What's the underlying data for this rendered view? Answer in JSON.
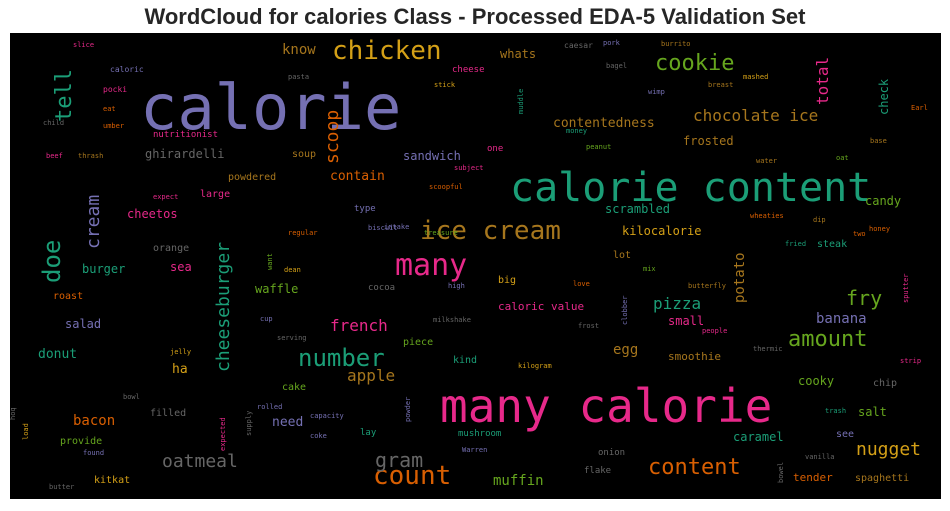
{
  "title": "WordCloud for calories Class - Processed EDA-5 Validation Set",
  "chart_data": {
    "type": "wordcloud",
    "background": "#000000",
    "words": [
      {
        "text": "calorie",
        "size": 62,
        "color": "#7570b3"
      },
      {
        "text": "many calorie",
        "size": 46,
        "color": "#e7298a"
      },
      {
        "text": "calorie content",
        "size": 40,
        "color": "#1b9e77"
      },
      {
        "text": "chicken",
        "size": 26,
        "color": "#d4a017"
      },
      {
        "text": "cookie",
        "size": 22,
        "color": "#66a61e"
      },
      {
        "text": "many",
        "size": 30,
        "color": "#e7298a"
      },
      {
        "text": "ice cream",
        "size": 26,
        "color": "#a6761d"
      },
      {
        "text": "count",
        "size": 26,
        "color": "#d95f02"
      },
      {
        "text": "number",
        "size": 24,
        "color": "#1b9e77"
      },
      {
        "text": "content",
        "size": 22,
        "color": "#d95f02"
      },
      {
        "text": "amount",
        "size": 22,
        "color": "#66a61e"
      },
      {
        "text": "doe",
        "size": 24,
        "color": "#1b9e77",
        "rotate": true
      },
      {
        "text": "tell",
        "size": 22,
        "color": "#1b9e77",
        "rotate": true
      },
      {
        "text": "scoop",
        "size": 18,
        "color": "#d95f02",
        "rotate": true
      },
      {
        "text": "cheeseburger",
        "size": 18,
        "color": "#1b9e77",
        "rotate": true
      },
      {
        "text": "chocolate ice",
        "size": 16,
        "color": "#a6761d"
      },
      {
        "text": "total",
        "size": 16,
        "color": "#e7298a",
        "rotate": true
      },
      {
        "text": "fry",
        "size": 20,
        "color": "#66a61e"
      },
      {
        "text": "gram",
        "size": 20,
        "color": "#666666"
      },
      {
        "text": "oatmeal",
        "size": 18,
        "color": "#666666"
      },
      {
        "text": "nugget",
        "size": 18,
        "color": "#d4a017"
      },
      {
        "text": "cream",
        "size": 18,
        "color": "#7570b3",
        "rotate": true
      },
      {
        "text": "french",
        "size": 16,
        "color": "#e7298a"
      },
      {
        "text": "apple",
        "size": 16,
        "color": "#a6761d"
      },
      {
        "text": "pizza",
        "size": 16,
        "color": "#1b9e77"
      },
      {
        "text": "banana",
        "size": 14,
        "color": "#7570b3"
      },
      {
        "text": "potato",
        "size": 14,
        "color": "#a6761d",
        "rotate": true
      },
      {
        "text": "muffin",
        "size": 14,
        "color": "#66a61e"
      },
      {
        "text": "bacon",
        "size": 14,
        "color": "#d95f02"
      },
      {
        "text": "know",
        "size": 14,
        "color": "#a6761d"
      },
      {
        "text": "whats",
        "size": 12,
        "color": "#a6761d"
      },
      {
        "text": "contentedness",
        "size": 13,
        "color": "#a6761d"
      },
      {
        "text": "frosted",
        "size": 12,
        "color": "#a6761d"
      },
      {
        "text": "check",
        "size": 12,
        "color": "#1b9e77",
        "rotate": true
      },
      {
        "text": "ghirardelli",
        "size": 12,
        "color": "#666666"
      },
      {
        "text": "sandwich",
        "size": 12,
        "color": "#7570b3"
      },
      {
        "text": "contain",
        "size": 13,
        "color": "#d95f02"
      },
      {
        "text": "scrambled",
        "size": 12,
        "color": "#1b9e77"
      },
      {
        "text": "candy",
        "size": 12,
        "color": "#66a61e"
      },
      {
        "text": "kilocalorie",
        "size": 12,
        "color": "#d4a017"
      },
      {
        "text": "cheetos",
        "size": 12,
        "color": "#e7298a"
      },
      {
        "text": "burger",
        "size": 12,
        "color": "#1b9e77"
      },
      {
        "text": "sea",
        "size": 12,
        "color": "#e7298a"
      },
      {
        "text": "waffle",
        "size": 12,
        "color": "#66a61e"
      },
      {
        "text": "salad",
        "size": 12,
        "color": "#7570b3"
      },
      {
        "text": "donut",
        "size": 13,
        "color": "#1b9e77"
      },
      {
        "text": "ha",
        "size": 13,
        "color": "#d4a017"
      },
      {
        "text": "egg",
        "size": 14,
        "color": "#a6761d"
      },
      {
        "text": "smoothie",
        "size": 11,
        "color": "#a6761d"
      },
      {
        "text": "small",
        "size": 12,
        "color": "#e7298a"
      },
      {
        "text": "caloric value",
        "size": 11,
        "color": "#e7298a"
      },
      {
        "text": "cooky",
        "size": 12,
        "color": "#66a61e"
      },
      {
        "text": "salt",
        "size": 12,
        "color": "#66a61e"
      },
      {
        "text": "caramel",
        "size": 12,
        "color": "#1b9e77"
      },
      {
        "text": "need",
        "size": 13,
        "color": "#7570b3"
      },
      {
        "text": "tender",
        "size": 11,
        "color": "#d95f02"
      },
      {
        "text": "spaghetti",
        "size": 10,
        "color": "#a6761d"
      },
      {
        "text": "kitkat",
        "size": 10,
        "color": "#d4a017"
      },
      {
        "text": "provide",
        "size": 10,
        "color": "#66a61e"
      },
      {
        "text": "filled",
        "size": 10,
        "color": "#666666"
      },
      {
        "text": "powdered",
        "size": 10,
        "color": "#a6761d"
      },
      {
        "text": "large",
        "size": 10,
        "color": "#e7298a"
      },
      {
        "text": "soup",
        "size": 10,
        "color": "#a6761d"
      },
      {
        "text": "roast",
        "size": 10,
        "color": "#d95f02"
      },
      {
        "text": "orange",
        "size": 10,
        "color": "#666666"
      },
      {
        "text": "cocoa",
        "size": 9,
        "color": "#666666"
      },
      {
        "text": "big",
        "size": 10,
        "color": "#d4a017"
      },
      {
        "text": "lot",
        "size": 10,
        "color": "#a6761d"
      },
      {
        "text": "steak",
        "size": 10,
        "color": "#1b9e77"
      },
      {
        "text": "kind",
        "size": 10,
        "color": "#1b9e77"
      },
      {
        "text": "piece",
        "size": 10,
        "color": "#66a61e"
      },
      {
        "text": "cake",
        "size": 10,
        "color": "#66a61e"
      },
      {
        "text": "chip",
        "size": 10,
        "color": "#666666"
      },
      {
        "text": "see",
        "size": 10,
        "color": "#7570b3"
      },
      {
        "text": "mushroom",
        "size": 9,
        "color": "#1b9e77"
      },
      {
        "text": "onion",
        "size": 9,
        "color": "#666666"
      },
      {
        "text": "flake",
        "size": 9,
        "color": "#666666"
      },
      {
        "text": "lay",
        "size": 9,
        "color": "#1b9e77"
      },
      {
        "text": "nutritionist",
        "size": 9,
        "color": "#e7298a"
      },
      {
        "text": "type",
        "size": 9,
        "color": "#7570b3"
      },
      {
        "text": "one",
        "size": 9,
        "color": "#e7298a"
      },
      {
        "text": "caloric",
        "size": 8,
        "color": "#7570b3"
      },
      {
        "text": "slice",
        "size": 7,
        "color": "#e7298a"
      },
      {
        "text": "pocki",
        "size": 8,
        "color": "#e7298a"
      },
      {
        "text": "eat",
        "size": 7,
        "color": "#d95f02"
      },
      {
        "text": "child",
        "size": 7,
        "color": "#666666"
      },
      {
        "text": "umber",
        "size": 7,
        "color": "#d95f02"
      },
      {
        "text": "beef",
        "size": 7,
        "color": "#e7298a"
      },
      {
        "text": "thrash",
        "size": 7,
        "color": "#a6761d"
      },
      {
        "text": "caesar",
        "size": 8,
        "color": "#666666"
      },
      {
        "text": "pork",
        "size": 7,
        "color": "#7570b3"
      },
      {
        "text": "burrito",
        "size": 7,
        "color": "#a6761d"
      },
      {
        "text": "bagel",
        "size": 7,
        "color": "#666666"
      },
      {
        "text": "mashed",
        "size": 7,
        "color": "#d4a017"
      },
      {
        "text": "breast",
        "size": 7,
        "color": "#a6761d"
      },
      {
        "text": "wimp",
        "size": 7,
        "color": "#7570b3"
      },
      {
        "text": "Earl",
        "size": 7,
        "color": "#d95f02"
      },
      {
        "text": "base",
        "size": 7,
        "color": "#a6761d"
      },
      {
        "text": "money",
        "size": 7,
        "color": "#1b9e77"
      },
      {
        "text": "peanut",
        "size": 7,
        "color": "#66a61e"
      },
      {
        "text": "water",
        "size": 7,
        "color": "#a6761d"
      },
      {
        "text": "oat",
        "size": 7,
        "color": "#66a61e"
      },
      {
        "text": "pasta",
        "size": 7,
        "color": "#666666"
      },
      {
        "text": "cheese",
        "size": 9,
        "color": "#e7298a"
      },
      {
        "text": "stick",
        "size": 7,
        "color": "#d4a017"
      },
      {
        "text": "muddle",
        "size": 7,
        "color": "#1b9e77",
        "rotate": true
      },
      {
        "text": "subject",
        "size": 7,
        "color": "#e7298a"
      },
      {
        "text": "scoopful",
        "size": 7,
        "color": "#d95f02"
      },
      {
        "text": "expect",
        "size": 7,
        "color": "#e7298a"
      },
      {
        "text": "intake",
        "size": 7,
        "color": "#7570b3"
      },
      {
        "text": "treasure",
        "size": 7,
        "color": "#66a61e"
      },
      {
        "text": "wheaties",
        "size": 7,
        "color": "#d95f02"
      },
      {
        "text": "dip",
        "size": 7,
        "color": "#a6761d"
      },
      {
        "text": "honey",
        "size": 7,
        "color": "#d95f02"
      },
      {
        "text": "two",
        "size": 7,
        "color": "#d95f02"
      },
      {
        "text": "regular",
        "size": 7,
        "color": "#d95f02"
      },
      {
        "text": "biscuit",
        "size": 7,
        "color": "#7570b3"
      },
      {
        "text": "fried",
        "size": 7,
        "color": "#1b9e77"
      },
      {
        "text": "dean",
        "size": 7,
        "color": "#d4a017"
      },
      {
        "text": "want",
        "size": 7,
        "color": "#66a61e",
        "rotate": true
      },
      {
        "text": "mix",
        "size": 7,
        "color": "#66a61e"
      },
      {
        "text": "high",
        "size": 7,
        "color": "#7570b3"
      },
      {
        "text": "love",
        "size": 7,
        "color": "#d95f02"
      },
      {
        "text": "butterfly",
        "size": 7,
        "color": "#a6761d"
      },
      {
        "text": "sputter",
        "size": 7,
        "color": "#e7298a",
        "rotate": true
      },
      {
        "text": "clobber",
        "size": 7,
        "color": "#7570b3",
        "rotate": true
      },
      {
        "text": "people",
        "size": 7,
        "color": "#e7298a"
      },
      {
        "text": "frost",
        "size": 7,
        "color": "#666666"
      },
      {
        "text": "cup",
        "size": 7,
        "color": "#7570b3"
      },
      {
        "text": "milkshake",
        "size": 7,
        "color": "#666666"
      },
      {
        "text": "serving",
        "size": 7,
        "color": "#666666"
      },
      {
        "text": "jelly",
        "size": 7,
        "color": "#d4a017"
      },
      {
        "text": "thermic",
        "size": 7,
        "color": "#666666"
      },
      {
        "text": "strip",
        "size": 7,
        "color": "#e7298a"
      },
      {
        "text": "kilogram",
        "size": 7,
        "color": "#d4a017"
      },
      {
        "text": "bowl",
        "size": 7,
        "color": "#666666"
      },
      {
        "text": "rolled",
        "size": 7,
        "color": "#7570b3"
      },
      {
        "text": "supply",
        "size": 7,
        "color": "#666666",
        "rotate": true
      },
      {
        "text": "capacity",
        "size": 7,
        "color": "#7570b3"
      },
      {
        "text": "powder",
        "size": 7,
        "color": "#7570b3",
        "rotate": true
      },
      {
        "text": "trash",
        "size": 7,
        "color": "#1b9e77"
      },
      {
        "text": "hoq",
        "size": 7,
        "color": "#666666",
        "rotate": true
      },
      {
        "text": "load",
        "size": 7,
        "color": "#d4a017",
        "rotate": true
      },
      {
        "text": "expected",
        "size": 7,
        "color": "#e7298a",
        "rotate": true
      },
      {
        "text": "coke",
        "size": 7,
        "color": "#7570b3"
      },
      {
        "text": "found",
        "size": 7,
        "color": "#7570b3"
      },
      {
        "text": "Warren",
        "size": 7,
        "color": "#7570b3"
      },
      {
        "text": "butter",
        "size": 7,
        "color": "#666666"
      },
      {
        "text": "vanilla",
        "size": 7,
        "color": "#666666"
      },
      {
        "text": "bowel",
        "size": 7,
        "color": "#666666",
        "rotate": true
      }
    ]
  }
}
